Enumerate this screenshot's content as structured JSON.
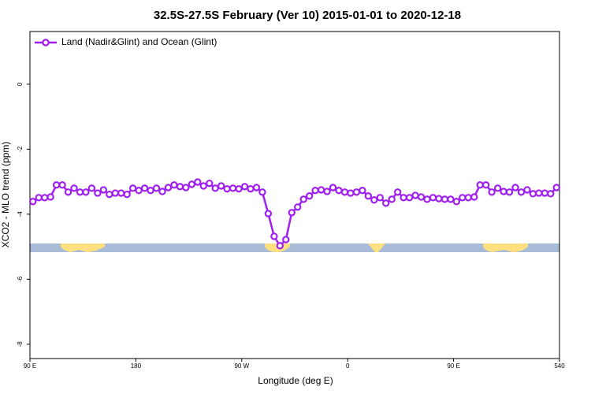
{
  "chart_data": {
    "type": "line",
    "title": "32.5S-27.5S February (Ver 10)   2015-01-01 to 2020-12-18",
    "x_label": "Longitude (deg E)",
    "y_label": "XCO2 - MLO trend (ppm)",
    "xlim": [
      90,
      540
    ],
    "ylim": [
      -8.44,
      1.62
    ],
    "xticks": [
      {
        "value": 90,
        "label": "90 E"
      },
      180,
      {
        "value": 270,
        "label": "90 W"
      },
      {
        "value": 360,
        "label": "0"
      },
      {
        "value": 450,
        "label": "90 E"
      },
      540
    ],
    "yticks": [
      0,
      -2,
      -4,
      -6,
      -8
    ],
    "legend": "upper left",
    "grid": false,
    "x": [
      92.5,
      97.5,
      102.5,
      107.5,
      112.5,
      117.5,
      122.5,
      127.5,
      132.5,
      137.5,
      142.5,
      147.5,
      152.5,
      157.5,
      162.5,
      167.5,
      172.5,
      177.5,
      182.5,
      187.5,
      192.5,
      197.5,
      202.5,
      207.5,
      212.5,
      217.5,
      222.5,
      227.5,
      232.5,
      237.5,
      242.5,
      247.5,
      252.5,
      257.5,
      262.5,
      267.5,
      272.5,
      277.5,
      282.5,
      287.5,
      292.5,
      297.5,
      302.5,
      307.5,
      312.5,
      317.5,
      322.5,
      327.5,
      332.5,
      337.5,
      342.5,
      347.5,
      352.5,
      357.5,
      362.5,
      367.5,
      372.5,
      377.5,
      382.5,
      387.5,
      392.5,
      397.5,
      402.5,
      407.5,
      412.5,
      417.5,
      422.5,
      427.5,
      432.5,
      437.5,
      442.5,
      447.5,
      452.5,
      457.5,
      462.5,
      467.5,
      472.5,
      477.5,
      482.5,
      487.5,
      492.5,
      497.5,
      502.5,
      507.5,
      512.5,
      517.5,
      522.5,
      527.5,
      532.5,
      537.5
    ],
    "series": [
      {
        "name": "Land (Nadir&Glint) and Ocean (Glint)",
        "color": "#a020f0",
        "values": [
          -3.61,
          -3.49,
          -3.49,
          -3.47,
          -3.1,
          -3.1,
          -3.32,
          -3.2,
          -3.32,
          -3.32,
          -3.2,
          -3.35,
          -3.25,
          -3.39,
          -3.35,
          -3.35,
          -3.39,
          -3.2,
          -3.27,
          -3.2,
          -3.27,
          -3.2,
          -3.3,
          -3.18,
          -3.1,
          -3.15,
          -3.18,
          -3.08,
          -3.01,
          -3.13,
          -3.05,
          -3.2,
          -3.13,
          -3.22,
          -3.2,
          -3.22,
          -3.15,
          -3.22,
          -3.18,
          -3.32,
          -3.98,
          -4.68,
          -4.97,
          -4.78,
          -3.95,
          -3.78,
          -3.54,
          -3.44,
          -3.27,
          -3.25,
          -3.3,
          -3.18,
          -3.27,
          -3.32,
          -3.35,
          -3.32,
          -3.27,
          -3.44,
          -3.56,
          -3.49,
          -3.66,
          -3.54,
          -3.32,
          -3.49,
          -3.49,
          -3.42,
          -3.47,
          -3.54,
          -3.49,
          -3.52,
          -3.54,
          -3.54,
          -3.61,
          -3.49,
          -3.49,
          -3.47,
          -3.1,
          -3.1,
          -3.32,
          -3.2,
          -3.3,
          -3.32,
          -3.18,
          -3.32,
          -3.25,
          -3.37,
          -3.35,
          -3.35,
          -3.37,
          -3.18
        ]
      }
    ]
  }
}
